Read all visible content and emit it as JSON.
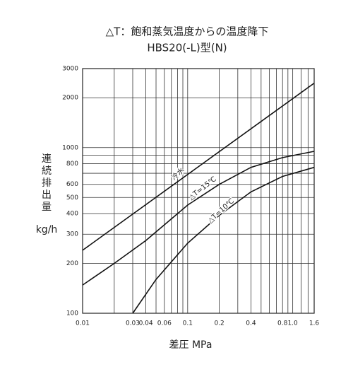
{
  "chart_data": {
    "type": "line",
    "title": "△T：飽和蒸気温度からの温度降下",
    "subtitle": "HBS20(-L)型(N)",
    "y_label": "連続排出量",
    "y_unit": "kg/h",
    "x_label": "差圧 MPa",
    "x_log": true,
    "y_log": true,
    "grid": true,
    "xlim": [
      0.01,
      1.6
    ],
    "ylim": [
      100,
      3000
    ],
    "xticks": [
      0.01,
      0.03,
      0.04,
      0.06,
      0.1,
      0.2,
      0.4,
      0.8,
      {
        "value": 1,
        "label": "1.0"
      },
      1.6
    ],
    "xgrid_minor": [
      0.02,
      0.05,
      0.07,
      0.08,
      0.09,
      0.3,
      0.5,
      0.6,
      0.7,
      0.9,
      1.2,
      1.4
    ],
    "yticks": [
      100,
      200,
      300,
      400,
      500,
      600,
      800,
      1000,
      2000,
      3000
    ],
    "ygrid_minor": [
      700,
      900
    ],
    "series": [
      {
        "name": "冷水",
        "color": "#111",
        "x": [
          0.01,
          1.6
        ],
        "values": [
          240,
          2450
        ]
      },
      {
        "name": "△T=15℃",
        "color": "#111",
        "x": [
          0.01,
          0.02,
          0.04,
          0.1,
          0.2,
          0.4,
          0.8,
          1.6
        ],
        "values": [
          148,
          200,
          275,
          450,
          600,
          760,
          870,
          950
        ]
      },
      {
        "name": "△T=10℃",
        "color": "#111",
        "x": [
          0.03,
          0.05,
          0.1,
          0.2,
          0.4,
          0.8,
          1.6
        ],
        "values": [
          100,
          160,
          265,
          390,
          540,
          670,
          760
        ]
      }
    ]
  }
}
